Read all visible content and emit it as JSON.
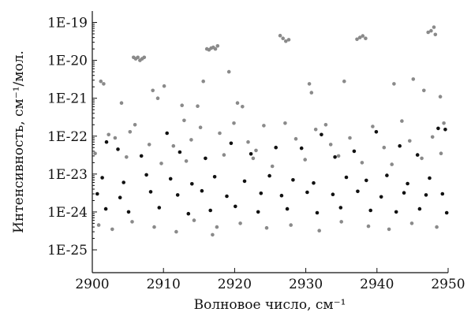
{
  "chart_data": {
    "type": "scatter",
    "title": "",
    "xlabel": "Волновое число, см⁻¹",
    "ylabel": "Интенсивность, см⁻¹/мол.",
    "xlim": [
      2900,
      2950
    ],
    "ylim": [
      2.5e-26,
      2e-19
    ],
    "yscale": "log",
    "grid": false,
    "legend": "none",
    "x_ticks": [
      2900,
      2910,
      2920,
      2930,
      2940,
      2950
    ],
    "x_tick_labels": [
      "2900",
      "2910",
      "2920",
      "2930",
      "2940",
      "2950"
    ],
    "y_ticks": [
      1e-25,
      1e-24,
      1e-23,
      1e-22,
      1e-21,
      1e-20,
      1e-19
    ],
    "y_tick_labels": [
      "1E-25",
      "1E-24",
      "1E-23",
      "1E-22",
      "1E-21",
      "1E-20",
      "1E-19"
    ],
    "series": [
      {
        "color": "#8a8a8a",
        "points": [
          [
            2905.8,
            1.2e-20
          ],
          [
            2906.1,
            1.1e-20
          ],
          [
            2906.4,
            1.2e-20
          ],
          [
            2906.7,
            1e-20
          ],
          [
            2907.0,
            1.1e-20
          ],
          [
            2907.3,
            1.2e-20
          ],
          [
            2916.1,
            2e-20
          ],
          [
            2916.4,
            1.9e-20
          ],
          [
            2916.7,
            2.1e-20
          ],
          [
            2917.0,
            2.2e-20
          ],
          [
            2917.3,
            2e-20
          ],
          [
            2917.6,
            2.4e-20
          ],
          [
            2926.4,
            4.5e-20
          ],
          [
            2926.8,
            3.8e-20
          ],
          [
            2927.2,
            3.2e-20
          ],
          [
            2927.6,
            3.5e-20
          ],
          [
            2937.2,
            3.6e-20
          ],
          [
            2937.6,
            4e-20
          ],
          [
            2938.0,
            4.4e-20
          ],
          [
            2938.4,
            3.8e-20
          ],
          [
            2947.2,
            5.5e-20
          ],
          [
            2947.6,
            6e-20
          ],
          [
            2948.0,
            7.5e-20
          ],
          [
            2948.2,
            4.8e-20
          ],
          [
            2901.2,
            2.8e-21
          ],
          [
            2901.6,
            2.4e-21
          ],
          [
            2904.1,
            7.5e-22
          ],
          [
            2908.5,
            1.6e-21
          ],
          [
            2909.2,
            1e-21
          ],
          [
            2910.1,
            2.1e-21
          ],
          [
            2912.6,
            6.5e-22
          ],
          [
            2914.8,
            6.2e-22
          ],
          [
            2915.6,
            2.8e-21
          ],
          [
            2919.2,
            5e-21
          ],
          [
            2920.4,
            7.5e-22
          ],
          [
            2921.1,
            6e-22
          ],
          [
            2930.5,
            2.4e-21
          ],
          [
            2930.8,
            1.4e-21
          ],
          [
            2935.4,
            2.8e-21
          ],
          [
            2942.4,
            2.4e-21
          ],
          [
            2945.1,
            3.2e-21
          ],
          [
            2946.6,
            1.6e-21
          ],
          [
            2948.9,
            1.1e-21
          ],
          [
            2906.0,
            2e-22
          ],
          [
            2912.9,
            2.6e-22
          ],
          [
            2915.2,
            1.7e-22
          ],
          [
            2919.9,
            2.2e-22
          ],
          [
            2924.1,
            1.9e-22
          ],
          [
            2927.1,
            2.2e-22
          ],
          [
            2931.4,
            1.5e-22
          ],
          [
            2932.8,
            2e-22
          ],
          [
            2939.4,
            1.8e-22
          ],
          [
            2943.5,
            2.5e-22
          ],
          [
            2949.4,
            2.2e-22
          ],
          [
            2902.3,
            1.1e-22
          ],
          [
            2903.2,
            9e-23
          ],
          [
            2905.3,
            1.3e-22
          ],
          [
            2908.0,
            6e-23
          ],
          [
            2911.4,
            5.5e-23
          ],
          [
            2913.9,
            8e-23
          ],
          [
            2917.9,
            1.2e-22
          ],
          [
            2921.9,
            7e-23
          ],
          [
            2923.0,
            4.2e-23
          ],
          [
            2928.6,
            8.5e-23
          ],
          [
            2933.5,
            6e-23
          ],
          [
            2936.2,
            9e-23
          ],
          [
            2941.0,
            5e-23
          ],
          [
            2944.6,
            7.5e-23
          ],
          [
            2947.8,
            9.5e-23
          ],
          [
            2900.4,
            3.5e-23
          ],
          [
            2904.8,
            2.8e-23
          ],
          [
            2909.7,
            1.9e-23
          ],
          [
            2913.2,
            2.2e-23
          ],
          [
            2918.5,
            3.2e-23
          ],
          [
            2922.6,
            2.6e-23
          ],
          [
            2925.3,
            1.6e-23
          ],
          [
            2929.9,
            2.4e-23
          ],
          [
            2934.6,
            3e-23
          ],
          [
            2937.9,
            2e-23
          ],
          [
            2942.1,
            1.8e-23
          ],
          [
            2946.3,
            2.6e-23
          ],
          [
            2949.0,
            3.5e-23
          ],
          [
            2900.9,
            4.5e-25
          ],
          [
            2902.8,
            3.5e-25
          ],
          [
            2905.6,
            5.5e-25
          ],
          [
            2908.7,
            4e-25
          ],
          [
            2911.8,
            3e-25
          ],
          [
            2914.3,
            6e-25
          ],
          [
            2916.9,
            2.5e-25
          ],
          [
            2917.5,
            4e-25
          ],
          [
            2920.8,
            5e-25
          ],
          [
            2924.5,
            3.8e-25
          ],
          [
            2927.9,
            4.5e-25
          ],
          [
            2931.9,
            3.2e-25
          ],
          [
            2935.0,
            5.5e-25
          ],
          [
            2938.8,
            4.2e-25
          ],
          [
            2941.7,
            3.5e-25
          ],
          [
            2944.9,
            5e-25
          ],
          [
            2948.4,
            4e-25
          ]
        ]
      },
      {
        "color": "#111111",
        "points": [
          [
            2902.0,
            7e-23
          ],
          [
            2903.6,
            4.5e-23
          ],
          [
            2906.9,
            3e-23
          ],
          [
            2910.5,
            1.2e-22
          ],
          [
            2912.3,
            3.8e-23
          ],
          [
            2915.9,
            2.6e-23
          ],
          [
            2919.5,
            6.5e-23
          ],
          [
            2922.3,
            3.4e-23
          ],
          [
            2925.8,
            5e-23
          ],
          [
            2929.4,
            4.8e-23
          ],
          [
            2932.2,
            1.1e-22
          ],
          [
            2934.1,
            2.8e-23
          ],
          [
            2936.8,
            4e-23
          ],
          [
            2939.9,
            1.3e-22
          ],
          [
            2943.2,
            5.5e-23
          ],
          [
            2945.7,
            3.2e-23
          ],
          [
            2948.6,
            1.6e-22
          ],
          [
            2949.6,
            1.5e-22
          ],
          [
            2901.4,
            8e-24
          ],
          [
            2904.4,
            6e-24
          ],
          [
            2907.6,
            9.5e-24
          ],
          [
            2911.0,
            7.5e-24
          ],
          [
            2914.0,
            5.5e-24
          ],
          [
            2917.2,
            8.5e-24
          ],
          [
            2921.4,
            6.5e-24
          ],
          [
            2924.9,
            9e-24
          ],
          [
            2928.2,
            7e-24
          ],
          [
            2931.1,
            5.8e-24
          ],
          [
            2935.7,
            8.2e-24
          ],
          [
            2938.5,
            6.8e-24
          ],
          [
            2941.4,
            9.2e-24
          ],
          [
            2944.3,
            5.6e-24
          ],
          [
            2947.4,
            7.8e-24
          ],
          [
            2900.7,
            3e-24
          ],
          [
            2903.9,
            2.4e-24
          ],
          [
            2908.2,
            3.4e-24
          ],
          [
            2912.0,
            2.8e-24
          ],
          [
            2915.4,
            3.6e-24
          ],
          [
            2918.9,
            2.6e-24
          ],
          [
            2923.7,
            3.1e-24
          ],
          [
            2926.6,
            2.7e-24
          ],
          [
            2930.2,
            3.3e-24
          ],
          [
            2933.8,
            2.9e-24
          ],
          [
            2937.3,
            3.5e-24
          ],
          [
            2940.6,
            2.5e-24
          ],
          [
            2943.8,
            3.2e-24
          ],
          [
            2946.9,
            2.8e-24
          ],
          [
            2949.2,
            3e-24
          ],
          [
            2901.9,
            1.2e-24
          ],
          [
            2905.1,
            1e-24
          ],
          [
            2909.4,
            1.3e-24
          ],
          [
            2913.5,
            9e-25
          ],
          [
            2916.6,
            1.1e-24
          ],
          [
            2920.1,
            1.4e-24
          ],
          [
            2923.3,
            1e-24
          ],
          [
            2927.4,
            1.2e-24
          ],
          [
            2931.6,
            9.5e-25
          ],
          [
            2934.9,
            1.3e-24
          ],
          [
            2939.1,
            1.1e-24
          ],
          [
            2942.7,
            1e-24
          ],
          [
            2946.0,
            1.2e-24
          ],
          [
            2949.8,
            9.5e-25
          ]
        ]
      }
    ]
  }
}
